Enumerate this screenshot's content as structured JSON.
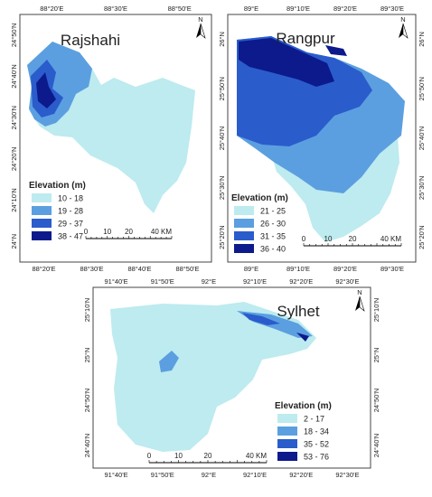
{
  "panels": [
    {
      "title": "Rajshahi",
      "north": "N",
      "top_ticks": [
        "88°20'E",
        "88°30'E",
        "88°50'E"
      ],
      "bottom_ticks": [
        "88°20'E",
        "88°30'E",
        "88°40'E",
        "88°50'E"
      ],
      "left_ticks": [
        "24°50'N",
        "24°40'N",
        "24°30'N",
        "24°20'N",
        "24°10'N",
        "24°N"
      ],
      "right_ticks": [],
      "legend": {
        "title": "Elevation (m)",
        "items": [
          {
            "label": "10 - 18",
            "color": "#bdebef"
          },
          {
            "label": "19 - 28",
            "color": "#5b9fe0"
          },
          {
            "label": "29 - 37",
            "color": "#2a5ccc"
          },
          {
            "label": "38 - 47",
            "color": "#0c1a8c"
          }
        ]
      },
      "scale": [
        "0",
        "10",
        "20",
        "40 KM"
      ]
    },
    {
      "title": "Rangpur",
      "north": "N",
      "top_ticks": [
        "89°E",
        "89°10'E",
        "89°20'E",
        "89°30'E"
      ],
      "bottom_ticks": [
        "89°E",
        "89°10'E",
        "89°20'E",
        "89°30'E"
      ],
      "left_ticks": [
        "26°N",
        "25°50'N",
        "25°40'N",
        "25°30'N",
        "25°20'N"
      ],
      "right_ticks": [
        "26°N",
        "25°50'N",
        "25°40'N",
        "25°30'N",
        "25°20'N"
      ],
      "legend": {
        "title": "Elevation (m)",
        "items": [
          {
            "label": "21 - 25",
            "color": "#bdebef"
          },
          {
            "label": "26 - 30",
            "color": "#5b9fe0"
          },
          {
            "label": "31 - 35",
            "color": "#2a5ccc"
          },
          {
            "label": "36 - 40",
            "color": "#0c1a8c"
          }
        ]
      },
      "scale": [
        "0",
        "10",
        "20",
        "40 KM"
      ]
    },
    {
      "title": "Sylhet",
      "north": "N",
      "top_ticks": [
        "91°40'E",
        "91°50'E",
        "92°E",
        "92°10'E",
        "92°20'E",
        "92°30'E"
      ],
      "bottom_ticks": [
        "91°40'E",
        "91°50'E",
        "92°E",
        "92°10'E",
        "92°20'E",
        "92°30'E"
      ],
      "left_ticks": [
        "25°10'N",
        "25°N",
        "24°50'N",
        "24°40'N"
      ],
      "right_ticks": [
        "25°10'N",
        "25°N",
        "24°50'N",
        "24°40'N"
      ],
      "legend": {
        "title": "Elevation (m)",
        "items": [
          {
            "label": "2 - 17",
            "color": "#bdebef"
          },
          {
            "label": "18 - 34",
            "color": "#5b9fe0"
          },
          {
            "label": "35 - 52",
            "color": "#2a5ccc"
          },
          {
            "label": "53 - 76",
            "color": "#0c1a8c"
          }
        ]
      },
      "scale": [
        "0",
        "10",
        "20",
        "40 KM"
      ]
    }
  ]
}
